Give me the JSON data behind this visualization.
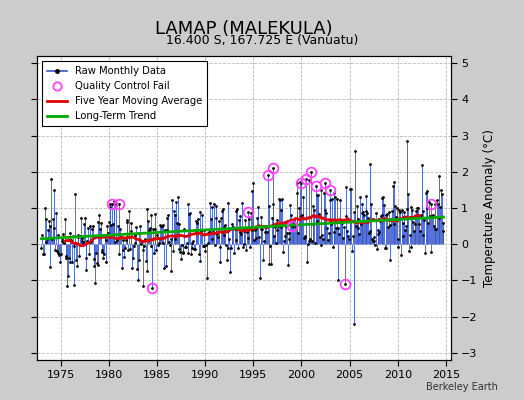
{
  "title": "LAMAP (MALEKULA)",
  "subtitle": "16.400 S, 167.725 E (Vanuatu)",
  "ylabel": "Temperature Anomaly (°C)",
  "watermark": "Berkeley Earth",
  "xlim": [
    1972.5,
    2015.5
  ],
  "ylim": [
    -3.2,
    5.2
  ],
  "yticks": [
    -3,
    -2,
    -1,
    0,
    1,
    2,
    3,
    4,
    5
  ],
  "xticks": [
    1975,
    1980,
    1985,
    1990,
    1995,
    2000,
    2005,
    2010,
    2015
  ],
  "raw_color": "#3355cc",
  "ma_color": "#dd0000",
  "trend_color": "#00aa00",
  "qc_color": "#ff44ff",
  "plot_bg": "#ffffff",
  "fig_bg": "#cccccc",
  "title_fontsize": 13,
  "subtitle_fontsize": 9,
  "tick_fontsize": 8,
  "ylabel_fontsize": 8.5
}
